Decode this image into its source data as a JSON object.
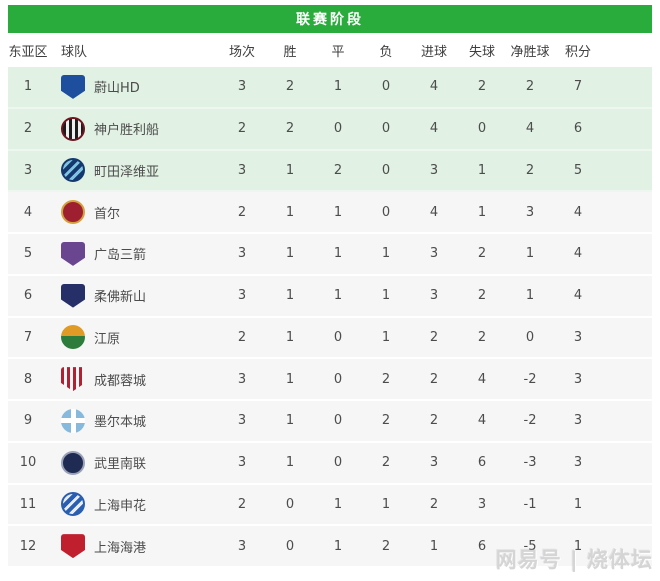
{
  "header": {
    "title": "联赛阶段",
    "bg_color": "#2aac3c",
    "text_color": "#ffffff"
  },
  "table": {
    "columns": [
      "东亚区",
      "球队",
      "场次",
      "胜",
      "平",
      "负",
      "进球",
      "失球",
      "净胜球",
      "积分"
    ],
    "highlight_row_bg": "#e1f1e3",
    "row_bg": "#f6f6f7",
    "rows": [
      {
        "rank": "1",
        "team": "蔚山HD",
        "highlight": true,
        "badge": {
          "shape": "shield",
          "pattern": "solid",
          "colors": [
            "#1d4f9e",
            "#ffffff"
          ],
          "ring": ""
        },
        "stats": [
          "3",
          "2",
          "1",
          "0",
          "4",
          "2",
          "2",
          "7"
        ]
      },
      {
        "rank": "2",
        "team": "神户胜利船",
        "highlight": true,
        "badge": {
          "shape": "circle",
          "pattern": "stripes-v",
          "colors": [
            "#1c1c1c",
            "#efefef"
          ],
          "ring": "#6e1520"
        },
        "stats": [
          "2",
          "2",
          "0",
          "0",
          "4",
          "0",
          "4",
          "6"
        ]
      },
      {
        "rank": "3",
        "team": "町田泽维亚",
        "highlight": true,
        "badge": {
          "shape": "circle",
          "pattern": "stripes-d",
          "colors": [
            "#15396e",
            "#7fc3e0"
          ],
          "ring": "#15396e"
        },
        "stats": [
          "3",
          "1",
          "2",
          "0",
          "3",
          "1",
          "2",
          "5"
        ]
      },
      {
        "rank": "4",
        "team": "首尔",
        "highlight": false,
        "badge": {
          "shape": "circle",
          "pattern": "solid",
          "colors": [
            "#9e2030",
            "#d4a23c"
          ],
          "ring": "#d4a23c"
        },
        "stats": [
          "2",
          "1",
          "1",
          "0",
          "4",
          "1",
          "3",
          "4"
        ]
      },
      {
        "rank": "5",
        "team": "广岛三箭",
        "highlight": false,
        "badge": {
          "shape": "shield",
          "pattern": "solid",
          "colors": [
            "#6a4590",
            "#ffffff"
          ],
          "ring": ""
        },
        "stats": [
          "3",
          "1",
          "1",
          "1",
          "3",
          "2",
          "1",
          "4"
        ]
      },
      {
        "rank": "6",
        "team": "柔佛新山",
        "highlight": false,
        "badge": {
          "shape": "shield",
          "pattern": "solid",
          "colors": [
            "#262f68",
            "#ffffff"
          ],
          "ring": ""
        },
        "stats": [
          "3",
          "1",
          "1",
          "1",
          "3",
          "2",
          "1",
          "4"
        ]
      },
      {
        "rank": "7",
        "team": "江原",
        "highlight": false,
        "badge": {
          "shape": "circle",
          "pattern": "split-h",
          "colors": [
            "#e09a26",
            "#2e7c3b"
          ],
          "ring": ""
        },
        "stats": [
          "2",
          "1",
          "0",
          "1",
          "2",
          "2",
          "0",
          "3"
        ]
      },
      {
        "rank": "8",
        "team": "成都蓉城",
        "highlight": false,
        "badge": {
          "shape": "shield",
          "pattern": "stripes-v",
          "colors": [
            "#b02233",
            "#f6f6f6"
          ],
          "ring": ""
        },
        "stats": [
          "3",
          "1",
          "0",
          "2",
          "2",
          "4",
          "-2",
          "3"
        ]
      },
      {
        "rank": "9",
        "team": "墨尔本城",
        "highlight": false,
        "badge": {
          "shape": "circle",
          "pattern": "cross",
          "colors": [
            "#86b9dc",
            "#ffffff"
          ],
          "ring": ""
        },
        "stats": [
          "3",
          "1",
          "0",
          "2",
          "2",
          "4",
          "-2",
          "3"
        ]
      },
      {
        "rank": "10",
        "team": "武里南联",
        "highlight": false,
        "badge": {
          "shape": "circle",
          "pattern": "solid",
          "colors": [
            "#1f2b52",
            "#9aa2b8"
          ],
          "ring": "#9aa2b8"
        },
        "stats": [
          "3",
          "1",
          "0",
          "2",
          "3",
          "6",
          "-3",
          "3"
        ]
      },
      {
        "rank": "11",
        "team": "上海申花",
        "highlight": false,
        "badge": {
          "shape": "circle",
          "pattern": "stripes-d",
          "colors": [
            "#2a5fb0",
            "#e8eef8"
          ],
          "ring": "#2a5fb0"
        },
        "stats": [
          "2",
          "0",
          "1",
          "1",
          "2",
          "3",
          "-1",
          "1"
        ]
      },
      {
        "rank": "12",
        "team": "上海海港",
        "highlight": false,
        "badge": {
          "shape": "shield",
          "pattern": "solid",
          "colors": [
            "#c01f2e",
            "#d4a23c"
          ],
          "ring": ""
        },
        "stats": [
          "3",
          "0",
          "1",
          "2",
          "1",
          "6",
          "-5",
          "1"
        ]
      }
    ]
  },
  "watermark": {
    "text": "网易号 | 烧体坛"
  }
}
